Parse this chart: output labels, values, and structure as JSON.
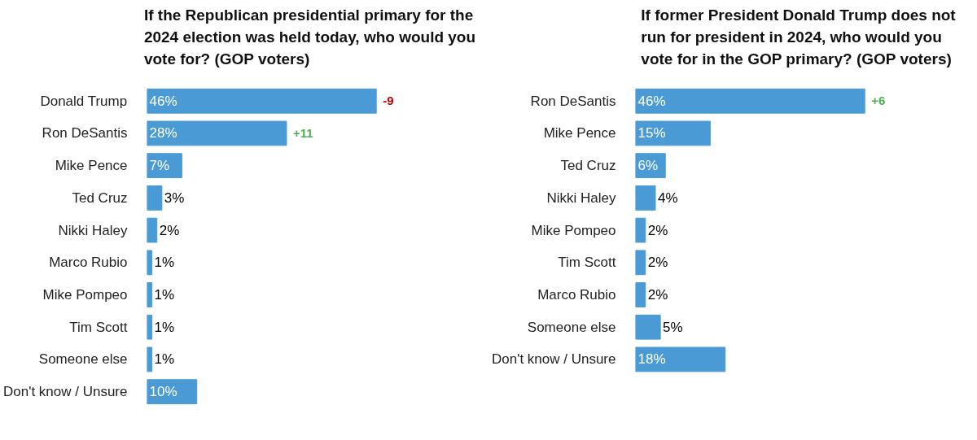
{
  "chart_data": [
    {
      "type": "bar",
      "orientation": "horizontal",
      "title": "If the Republican presidential primary for the 2024 election was held today, who would you vote for? (GOP voters)",
      "categories": [
        "Donald Trump",
        "Ron DeSantis",
        "Mike Pence",
        "Ted Cruz",
        "Nikki Haley",
        "Marco Rubio",
        "Mike Pompeo",
        "Tim Scott",
        "Someone else",
        "Don't know / Unsure"
      ],
      "values": [
        46,
        28,
        7,
        3,
        2,
        1,
        1,
        1,
        1,
        10
      ],
      "color": "#4a9bd5",
      "data_labels": true,
      "value_labels": [
        "46%",
        "28%",
        "7%",
        "3%",
        "2%",
        "1%",
        "1%",
        "1%",
        "1%",
        "10%"
      ],
      "tick_labels": "y",
      "grid": false,
      "annotations": [
        "-9",
        "+11"
      ]
    },
    {
      "type": "bar",
      "orientation": "horizontal",
      "title": "If former President Donald Trump does not run for president in 2024, who would you vote for in the GOP primary? (GOP voters)",
      "categories": [
        "Ron DeSantis",
        "Mike Pence",
        "Ted Cruz",
        "Nikki Haley",
        "Mike Pompeo",
        "Tim Scott",
        "Marco Rubio",
        "Someone else",
        "Don't know / Unsure"
      ],
      "values": [
        46,
        15,
        6,
        4,
        2,
        2,
        2,
        5,
        18
      ],
      "color": "#4a9bd5",
      "data_labels": true,
      "value_labels": [
        "46%",
        "15%",
        "6%",
        "4%",
        "2%",
        "2%",
        "2%",
        "5%",
        "18%"
      ],
      "tick_labels": "y",
      "grid": false,
      "annotations": [
        "+6"
      ]
    }
  ]
}
